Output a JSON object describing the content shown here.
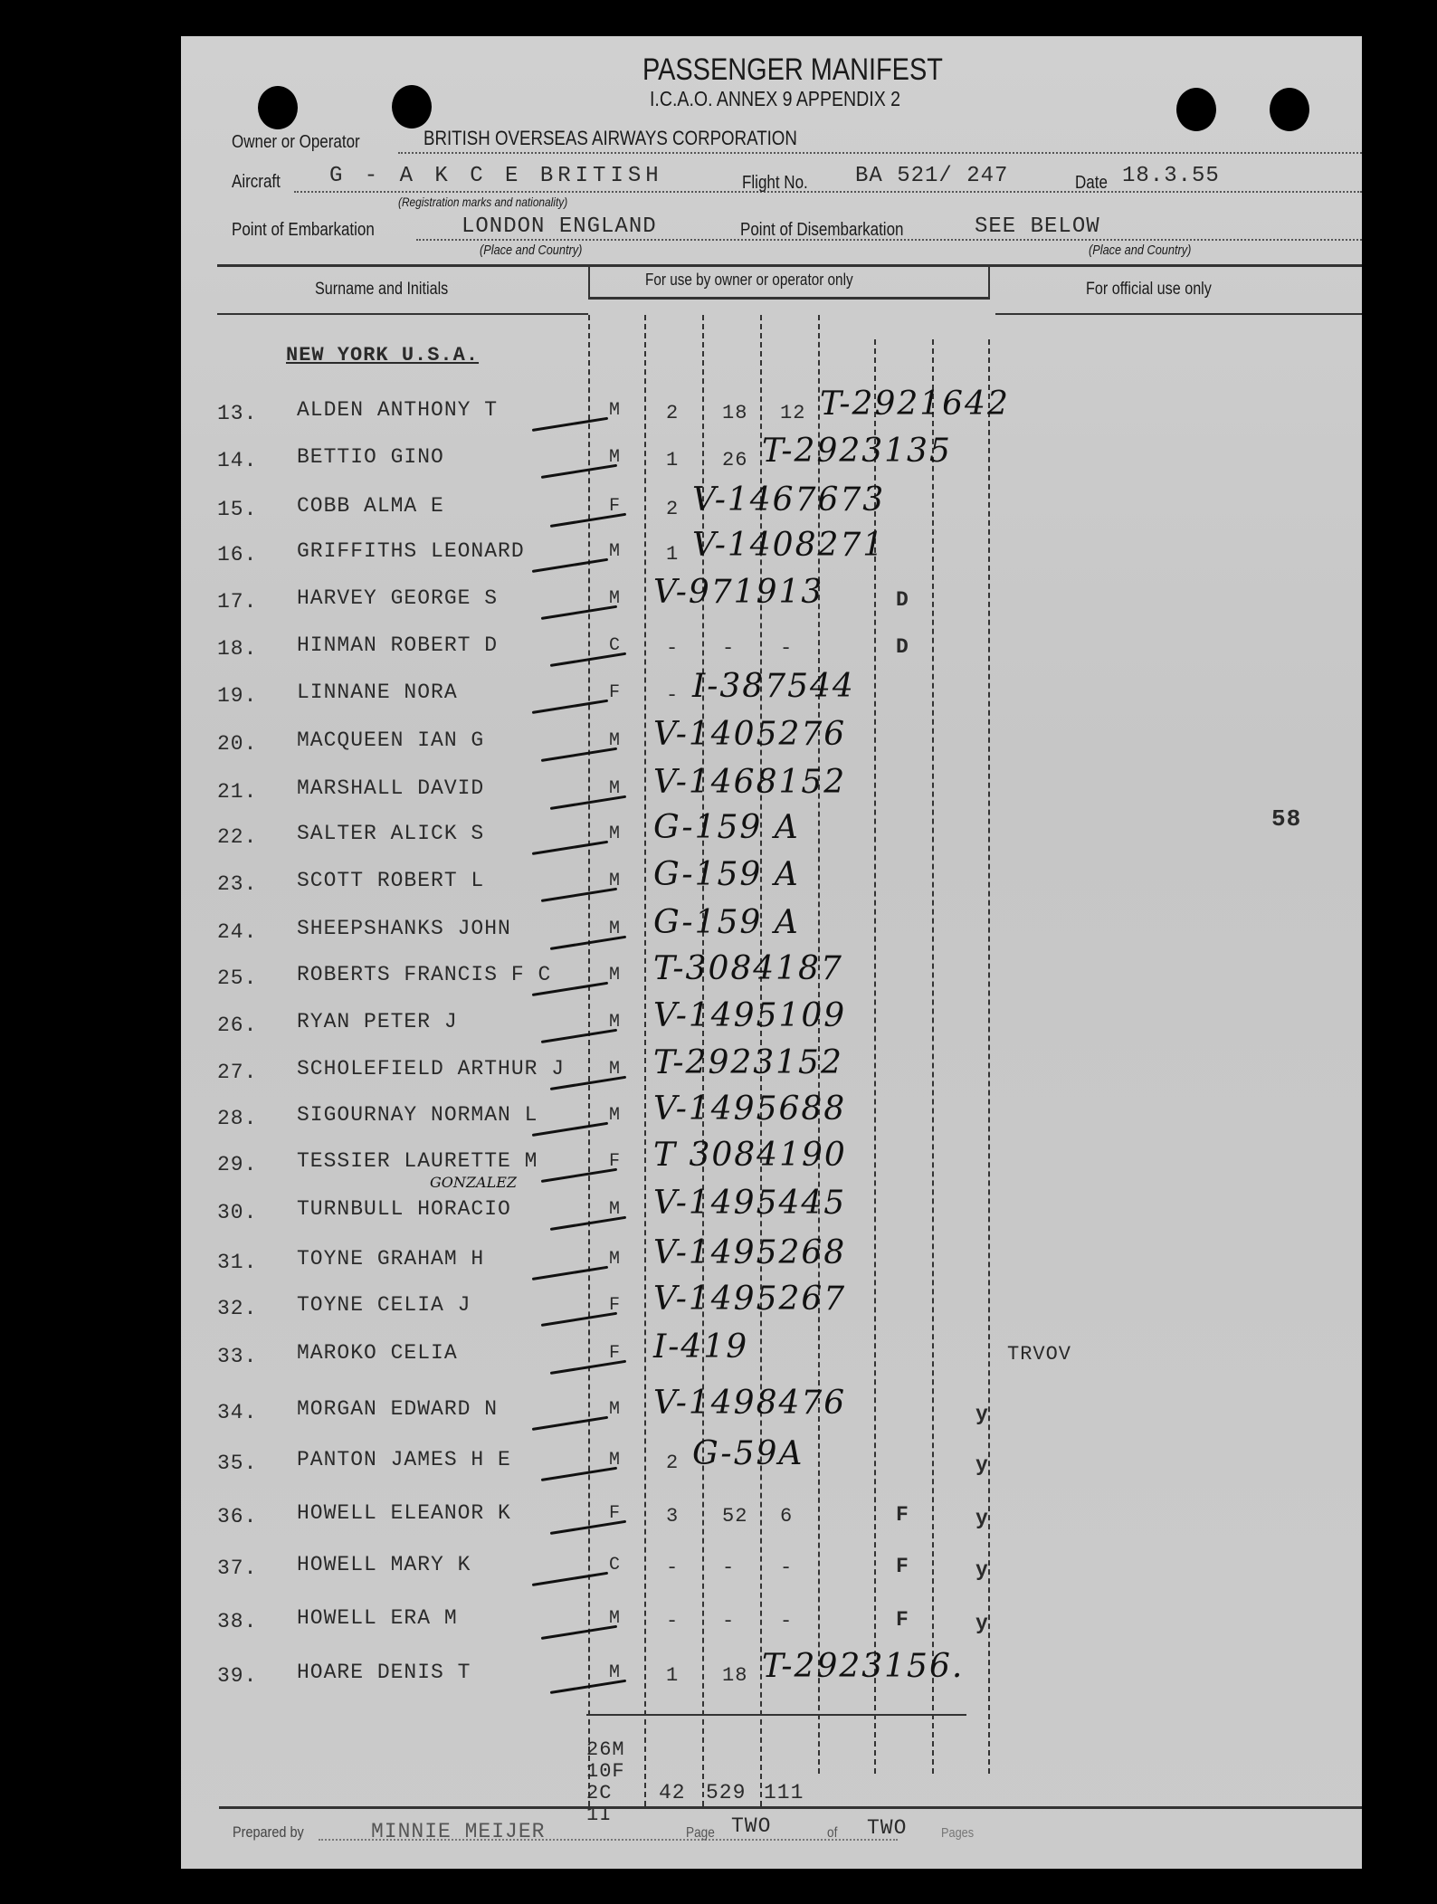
{
  "form": {
    "title": "PASSENGER MANIFEST",
    "subtitle": "I.C.A.O. ANNEX 9 APPENDIX 2",
    "owner_label": "Owner or Operator",
    "owner_value": "BRITISH OVERSEAS AIRWAYS CORPORATION",
    "aircraft_label": "Aircraft",
    "aircraft_value": "G - A K C E   BRITISH",
    "aircraft_hint": "(Registration marks and nationality)",
    "flight_label": "Flight No.",
    "flight_value": "BA 521/ 247",
    "date_label": "Date",
    "date_value": "18.3.55",
    "embark_label": "Point of Embarkation",
    "embark_value": "LONDON ENGLAND",
    "embark_hint": "(Place and Country)",
    "disembark_label": "Point of Disembarkation",
    "disembark_value": "SEE BELOW",
    "disembark_hint": "(Place and Country)"
  },
  "table": {
    "col_surname": "Surname and Initials",
    "col_operator": "For use by owner or operator only",
    "col_official": "For official use only",
    "section_heading": "NEW YORK U.S.A.",
    "rows": [
      {
        "num": "13.",
        "name": "ALDEN ANTHONY T",
        "sex": "M",
        "typed": [
          "2",
          "18",
          "12"
        ],
        "hand": "T-2921642",
        "off1": "",
        "off2": ""
      },
      {
        "num": "14.",
        "name": "BETTIO GINO",
        "sex": "M",
        "typed": [
          "1",
          "26",
          ""
        ],
        "hand": "T-2923135",
        "off1": "",
        "off2": ""
      },
      {
        "num": "15.",
        "name": "COBB ALMA E",
        "sex": "F",
        "typed": [
          "2",
          "",
          ""
        ],
        "hand": "V-1467673",
        "off1": "",
        "off2": ""
      },
      {
        "num": "16.",
        "name": "GRIFFITHS LEONARD",
        "sex": "M",
        "typed": [
          "1",
          "",
          ""
        ],
        "hand": "V-1408271",
        "off1": "",
        "off2": ""
      },
      {
        "num": "17.",
        "name": "HARVEY GEORGE S",
        "sex": "M",
        "typed": [
          "",
          "",
          ""
        ],
        "hand": "V-971913",
        "off1": "D",
        "off2": ""
      },
      {
        "num": "18.",
        "name": "HINMAN ROBERT D",
        "sex": "C",
        "typed": [
          "-",
          "-",
          "-"
        ],
        "hand": "",
        "off1": "D",
        "off2": ""
      },
      {
        "num": "19.",
        "name": "LINNANE NORA",
        "sex": "F",
        "typed": [
          "-",
          "",
          ""
        ],
        "hand": "I-387544",
        "off1": "",
        "off2": ""
      },
      {
        "num": "20.",
        "name": "MACQUEEN IAN G",
        "sex": "M",
        "typed": [
          "",
          "",
          ""
        ],
        "hand": "V-1405276",
        "off1": "",
        "off2": ""
      },
      {
        "num": "21.",
        "name": "MARSHALL DAVID",
        "sex": "M",
        "typed": [
          "",
          "",
          ""
        ],
        "hand": "V-1468152",
        "off1": "",
        "off2": ""
      },
      {
        "num": "22.",
        "name": "SALTER ALICK S",
        "sex": "M",
        "typed": [
          "",
          "",
          ""
        ],
        "hand": "G-159 A",
        "off1": "",
        "off2": ""
      },
      {
        "num": "23.",
        "name": "SCOTT ROBERT L",
        "sex": "M",
        "typed": [
          "",
          "",
          ""
        ],
        "hand": "G-159 A",
        "off1": "",
        "off2": ""
      },
      {
        "num": "24.",
        "name": "SHEEPSHANKS JOHN",
        "sex": "M",
        "typed": [
          "",
          "",
          ""
        ],
        "hand": "G-159 A",
        "off1": "",
        "off2": ""
      },
      {
        "num": "25.",
        "name": "ROBERTS FRANCIS F C",
        "sex": "M",
        "typed": [
          "",
          "",
          ""
        ],
        "hand": "T-3084187",
        "off1": "",
        "off2": ""
      },
      {
        "num": "26.",
        "name": "RYAN PETER J",
        "sex": "M",
        "typed": [
          "",
          "",
          ""
        ],
        "hand": "V-1495109",
        "off1": "",
        "off2": ""
      },
      {
        "num": "27.",
        "name": "SCHOLEFIELD ARTHUR J",
        "sex": "M",
        "typed": [
          "",
          "",
          ""
        ],
        "hand": "T-2923152",
        "off1": "",
        "off2": ""
      },
      {
        "num": "28.",
        "name": "SIGOURNAY NORMAN L",
        "sex": "M",
        "typed": [
          "",
          "",
          ""
        ],
        "hand": "V-1495688",
        "off1": "",
        "off2": ""
      },
      {
        "num": "29.",
        "name": "TESSIER LAURETTE M",
        "sex": "F",
        "typed": [
          "",
          "",
          ""
        ],
        "hand": "T 3084190",
        "off1": "",
        "off2": ""
      },
      {
        "num": "30.",
        "name": "TURNBULL HORACIO",
        "sex": "M",
        "typed": [
          "",
          "",
          ""
        ],
        "hand": "V-1495445",
        "off1": "",
        "off2": "",
        "annotation": "GONZALEZ"
      },
      {
        "num": "31.",
        "name": "TOYNE GRAHAM H",
        "sex": "M",
        "typed": [
          "",
          "",
          ""
        ],
        "hand": "V-1495268",
        "off1": "",
        "off2": ""
      },
      {
        "num": "32.",
        "name": "TOYNE CELIA J",
        "sex": "F",
        "typed": [
          "",
          "",
          ""
        ],
        "hand": "V-1495267",
        "off1": "",
        "off2": ""
      },
      {
        "num": "33.",
        "name": "MAROKO CELIA",
        "sex": "F",
        "typed": [
          "",
          "",
          ""
        ],
        "hand": "I-419",
        "off1": "",
        "off2": "",
        "note": "TRVOV"
      },
      {
        "num": "34.",
        "name": "MORGAN EDWARD N",
        "sex": "M",
        "typed": [
          "",
          "",
          ""
        ],
        "hand": "V-1498476",
        "off1": "",
        "off2": "y"
      },
      {
        "num": "35.",
        "name": "PANTON JAMES H E",
        "sex": "M",
        "typed": [
          "2",
          "",
          ""
        ],
        "hand": "G-59A",
        "off1": "",
        "off2": "y"
      },
      {
        "num": "36.",
        "name": "HOWELL ELEANOR K",
        "sex": "F",
        "typed": [
          "3",
          "52",
          "6"
        ],
        "hand": "",
        "off1": "F",
        "off2": "y"
      },
      {
        "num": "37.",
        "name": "HOWELL MARY K",
        "sex": "C",
        "typed": [
          "-",
          "-",
          "-"
        ],
        "hand": "",
        "off1": "F",
        "off2": "y"
      },
      {
        "num": "38.",
        "name": "HOWELL ERA M",
        "sex": "M",
        "typed": [
          "-",
          "-",
          "-"
        ],
        "hand": "",
        "off1": "F",
        "off2": "y"
      },
      {
        "num": "39.",
        "name": "HOARE DENIS T",
        "sex": "M",
        "typed": [
          "1",
          "18",
          ""
        ],
        "hand": "T-2923156.",
        "off1": "",
        "off2": ""
      }
    ],
    "totals": {
      "counts": [
        "26M",
        "10F",
        "2C",
        "1I"
      ],
      "col1": "42",
      "col2": "529",
      "col3": "111"
    },
    "margin_number": "58"
  },
  "footer": {
    "prepared_label": "Prepared by",
    "prepared_value": "MINNIE MEIJER",
    "page_label": "Page",
    "page_value": "TWO",
    "of_label": "of",
    "of_value": "TWO",
    "pages_label": "Pages"
  }
}
